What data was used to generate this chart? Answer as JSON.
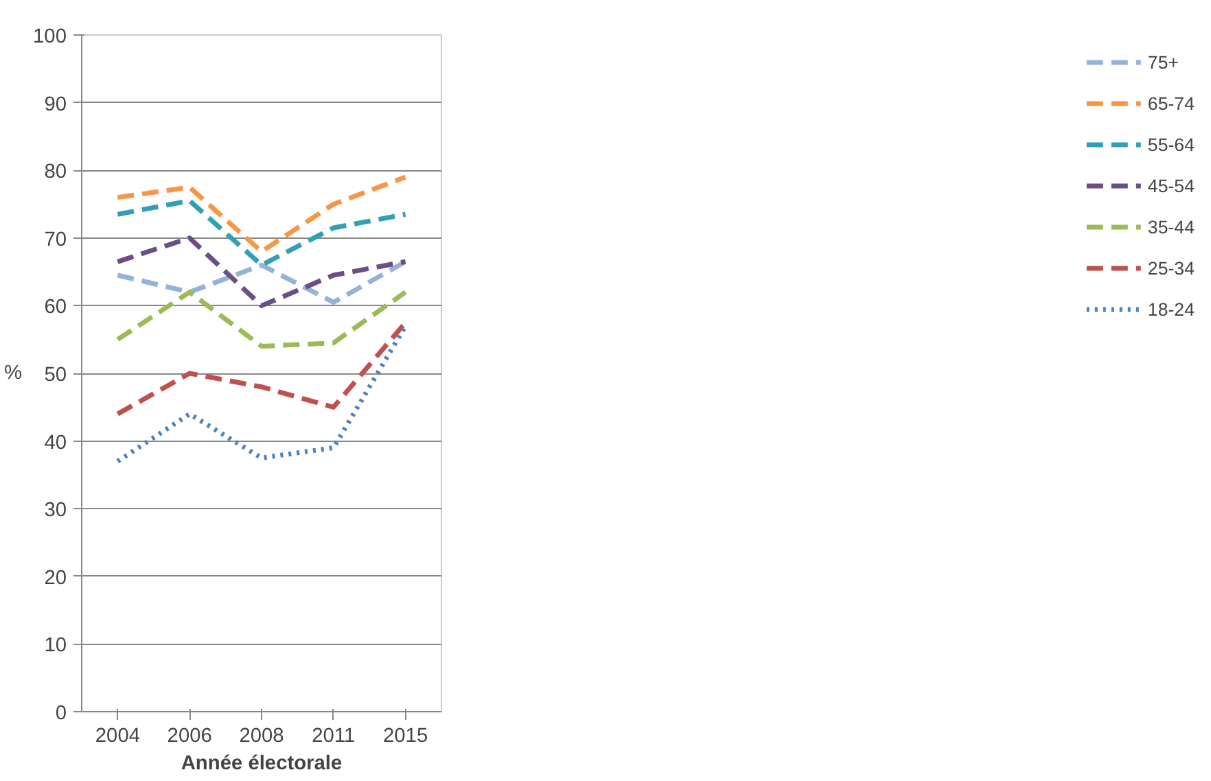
{
  "chart_data": {
    "type": "line",
    "xlabel": "Année électorale",
    "ylabel": "%",
    "categories": [
      "2004",
      "2006",
      "2008",
      "2011",
      "2015"
    ],
    "ylim": [
      0,
      100
    ],
    "yticks": [
      0,
      10,
      20,
      30,
      40,
      50,
      60,
      70,
      80,
      90,
      100
    ],
    "grid": "y",
    "legend": "right",
    "marker": "none",
    "series": [
      {
        "name": "75+",
        "color": "#95b3d7",
        "line_style": "dashed",
        "values": [
          64.5,
          62,
          66,
          60.5,
          66.5
        ]
      },
      {
        "name": "65-74",
        "color": "#f79646",
        "line_style": "dashed",
        "values": [
          76,
          77.5,
          68,
          75,
          79
        ]
      },
      {
        "name": "55-64",
        "color": "#31a0b5",
        "line_style": "dashed",
        "values": [
          73.5,
          75.5,
          66,
          71.5,
          73.5
        ]
      },
      {
        "name": "45-54",
        "color": "#6a4f86",
        "line_style": "dashed",
        "values": [
          66.5,
          70,
          60,
          64.5,
          66.5
        ]
      },
      {
        "name": "35-44",
        "color": "#9bbb59",
        "line_style": "dashed",
        "values": [
          55,
          62,
          54,
          54.5,
          62
        ]
      },
      {
        "name": "25-34",
        "color": "#c0504d",
        "line_style": "dashed",
        "values": [
          44,
          50,
          48,
          45,
          57.5
        ]
      },
      {
        "name": "18-24",
        "color": "#4f81bd",
        "line_style": "dotted",
        "values": [
          37,
          44,
          37.5,
          39,
          57
        ]
      }
    ]
  }
}
